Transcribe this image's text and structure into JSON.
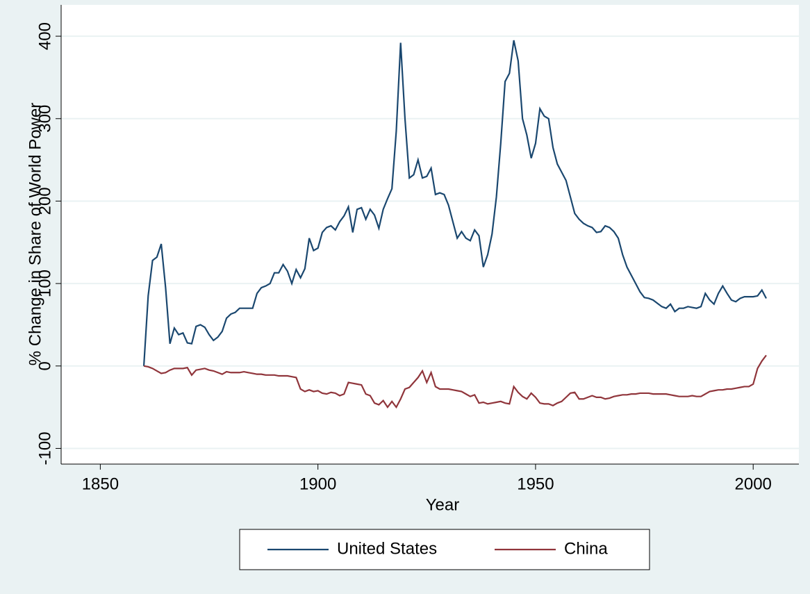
{
  "chart_data": {
    "type": "line",
    "xlabel": "Year",
    "ylabel": "% Change in Share of World Power",
    "x": [
      1860,
      1861,
      1862,
      1863,
      1864,
      1865,
      1866,
      1867,
      1868,
      1869,
      1870,
      1871,
      1872,
      1873,
      1874,
      1875,
      1876,
      1877,
      1878,
      1879,
      1880,
      1881,
      1882,
      1883,
      1884,
      1885,
      1886,
      1887,
      1888,
      1889,
      1890,
      1891,
      1892,
      1893,
      1894,
      1895,
      1896,
      1897,
      1898,
      1899,
      1900,
      1901,
      1902,
      1903,
      1904,
      1905,
      1906,
      1907,
      1908,
      1909,
      1910,
      1911,
      1912,
      1913,
      1914,
      1915,
      1916,
      1917,
      1918,
      1919,
      1920,
      1921,
      1922,
      1923,
      1924,
      1925,
      1926,
      1927,
      1928,
      1929,
      1930,
      1931,
      1932,
      1933,
      1934,
      1935,
      1936,
      1937,
      1938,
      1939,
      1940,
      1941,
      1942,
      1943,
      1944,
      1945,
      1946,
      1947,
      1948,
      1949,
      1950,
      1951,
      1952,
      1953,
      1954,
      1955,
      1956,
      1957,
      1958,
      1959,
      1960,
      1961,
      1962,
      1963,
      1964,
      1965,
      1966,
      1967,
      1968,
      1969,
      1970,
      1971,
      1972,
      1973,
      1974,
      1975,
      1976,
      1977,
      1978,
      1979,
      1980,
      1981,
      1982,
      1983,
      1984,
      1985,
      1986,
      1987,
      1988,
      1989,
      1990,
      1991,
      1992,
      1993,
      1994,
      1995,
      1996,
      1997,
      1998,
      1999,
      2000,
      2001,
      2002,
      2003
    ],
    "series": [
      {
        "name": "United States",
        "color": "#1a476f",
        "values": [
          0,
          85,
          128,
          132,
          148,
          95,
          27,
          46,
          38,
          40,
          28,
          27,
          48,
          50,
          47,
          38,
          31,
          35,
          42,
          58,
          63,
          65,
          70,
          70,
          70,
          70,
          88,
          95,
          97,
          100,
          113,
          113,
          123,
          115,
          100,
          117,
          107,
          118,
          155,
          140,
          143,
          162,
          168,
          170,
          165,
          175,
          182,
          193,
          162,
          190,
          192,
          178,
          190,
          183,
          167,
          190,
          203,
          215,
          285,
          392,
          300,
          228,
          232,
          250,
          228,
          230,
          240,
          208,
          210,
          208,
          195,
          175,
          155,
          163,
          155,
          152,
          165,
          158,
          120,
          135,
          160,
          205,
          270,
          345,
          355,
          395,
          370,
          300,
          280,
          252,
          270,
          312,
          303,
          300,
          265,
          245,
          235,
          225,
          205,
          185,
          178,
          173,
          170,
          168,
          162,
          163,
          170,
          168,
          163,
          155,
          135,
          120,
          110,
          100,
          90,
          83,
          82,
          80,
          76,
          72,
          70,
          75,
          66,
          70,
          70,
          72,
          71,
          70,
          72,
          88,
          80,
          75,
          88,
          97,
          88,
          80,
          78,
          82,
          84,
          84,
          84,
          85,
          92,
          82
        ]
      },
      {
        "name": "China",
        "color": "#90353b",
        "values": [
          0,
          -1,
          -3,
          -6,
          -9,
          -8,
          -5,
          -3,
          -3,
          -3,
          -2,
          -11,
          -5,
          -4,
          -3,
          -5,
          -6,
          -8,
          -10,
          -7,
          -8,
          -8,
          -8,
          -7,
          -8,
          -9,
          -10,
          -10,
          -11,
          -11,
          -11,
          -12,
          -12,
          -12,
          -13,
          -14,
          -28,
          -31,
          -29,
          -31,
          -30,
          -33,
          -34,
          -32,
          -33,
          -36,
          -34,
          -20,
          -21,
          -22,
          -23,
          -34,
          -36,
          -45,
          -47,
          -42,
          -50,
          -43,
          -50,
          -40,
          -28,
          -26,
          -20,
          -14,
          -6,
          -20,
          -8,
          -25,
          -28,
          -28,
          -28,
          -29,
          -30,
          -31,
          -34,
          -37,
          -35,
          -45,
          -44,
          -46,
          -45,
          -44,
          -43,
          -45,
          -46,
          -25,
          -32,
          -37,
          -40,
          -33,
          -38,
          -45,
          -46,
          -46,
          -48,
          -45,
          -43,
          -38,
          -33,
          -32,
          -40,
          -40,
          -38,
          -36,
          -38,
          -38,
          -40,
          -39,
          -37,
          -36,
          -35,
          -35,
          -34,
          -34,
          -33,
          -33,
          -33,
          -34,
          -34,
          -34,
          -34,
          -35,
          -36,
          -37,
          -37,
          -37,
          -36,
          -37,
          -37,
          -34,
          -31,
          -30,
          -29,
          -29,
          -28,
          -28,
          -27,
          -26,
          -25,
          -25,
          -22,
          -3,
          6,
          13
        ]
      }
    ],
    "xlim": [
      1841,
      2010.5
    ],
    "xticks": [
      1850,
      1900,
      1950,
      2000
    ],
    "ylim": [
      -119,
      438
    ],
    "yticks": [
      -100,
      0,
      100,
      200,
      300,
      400
    ],
    "grid": true,
    "legend": "bottom"
  }
}
